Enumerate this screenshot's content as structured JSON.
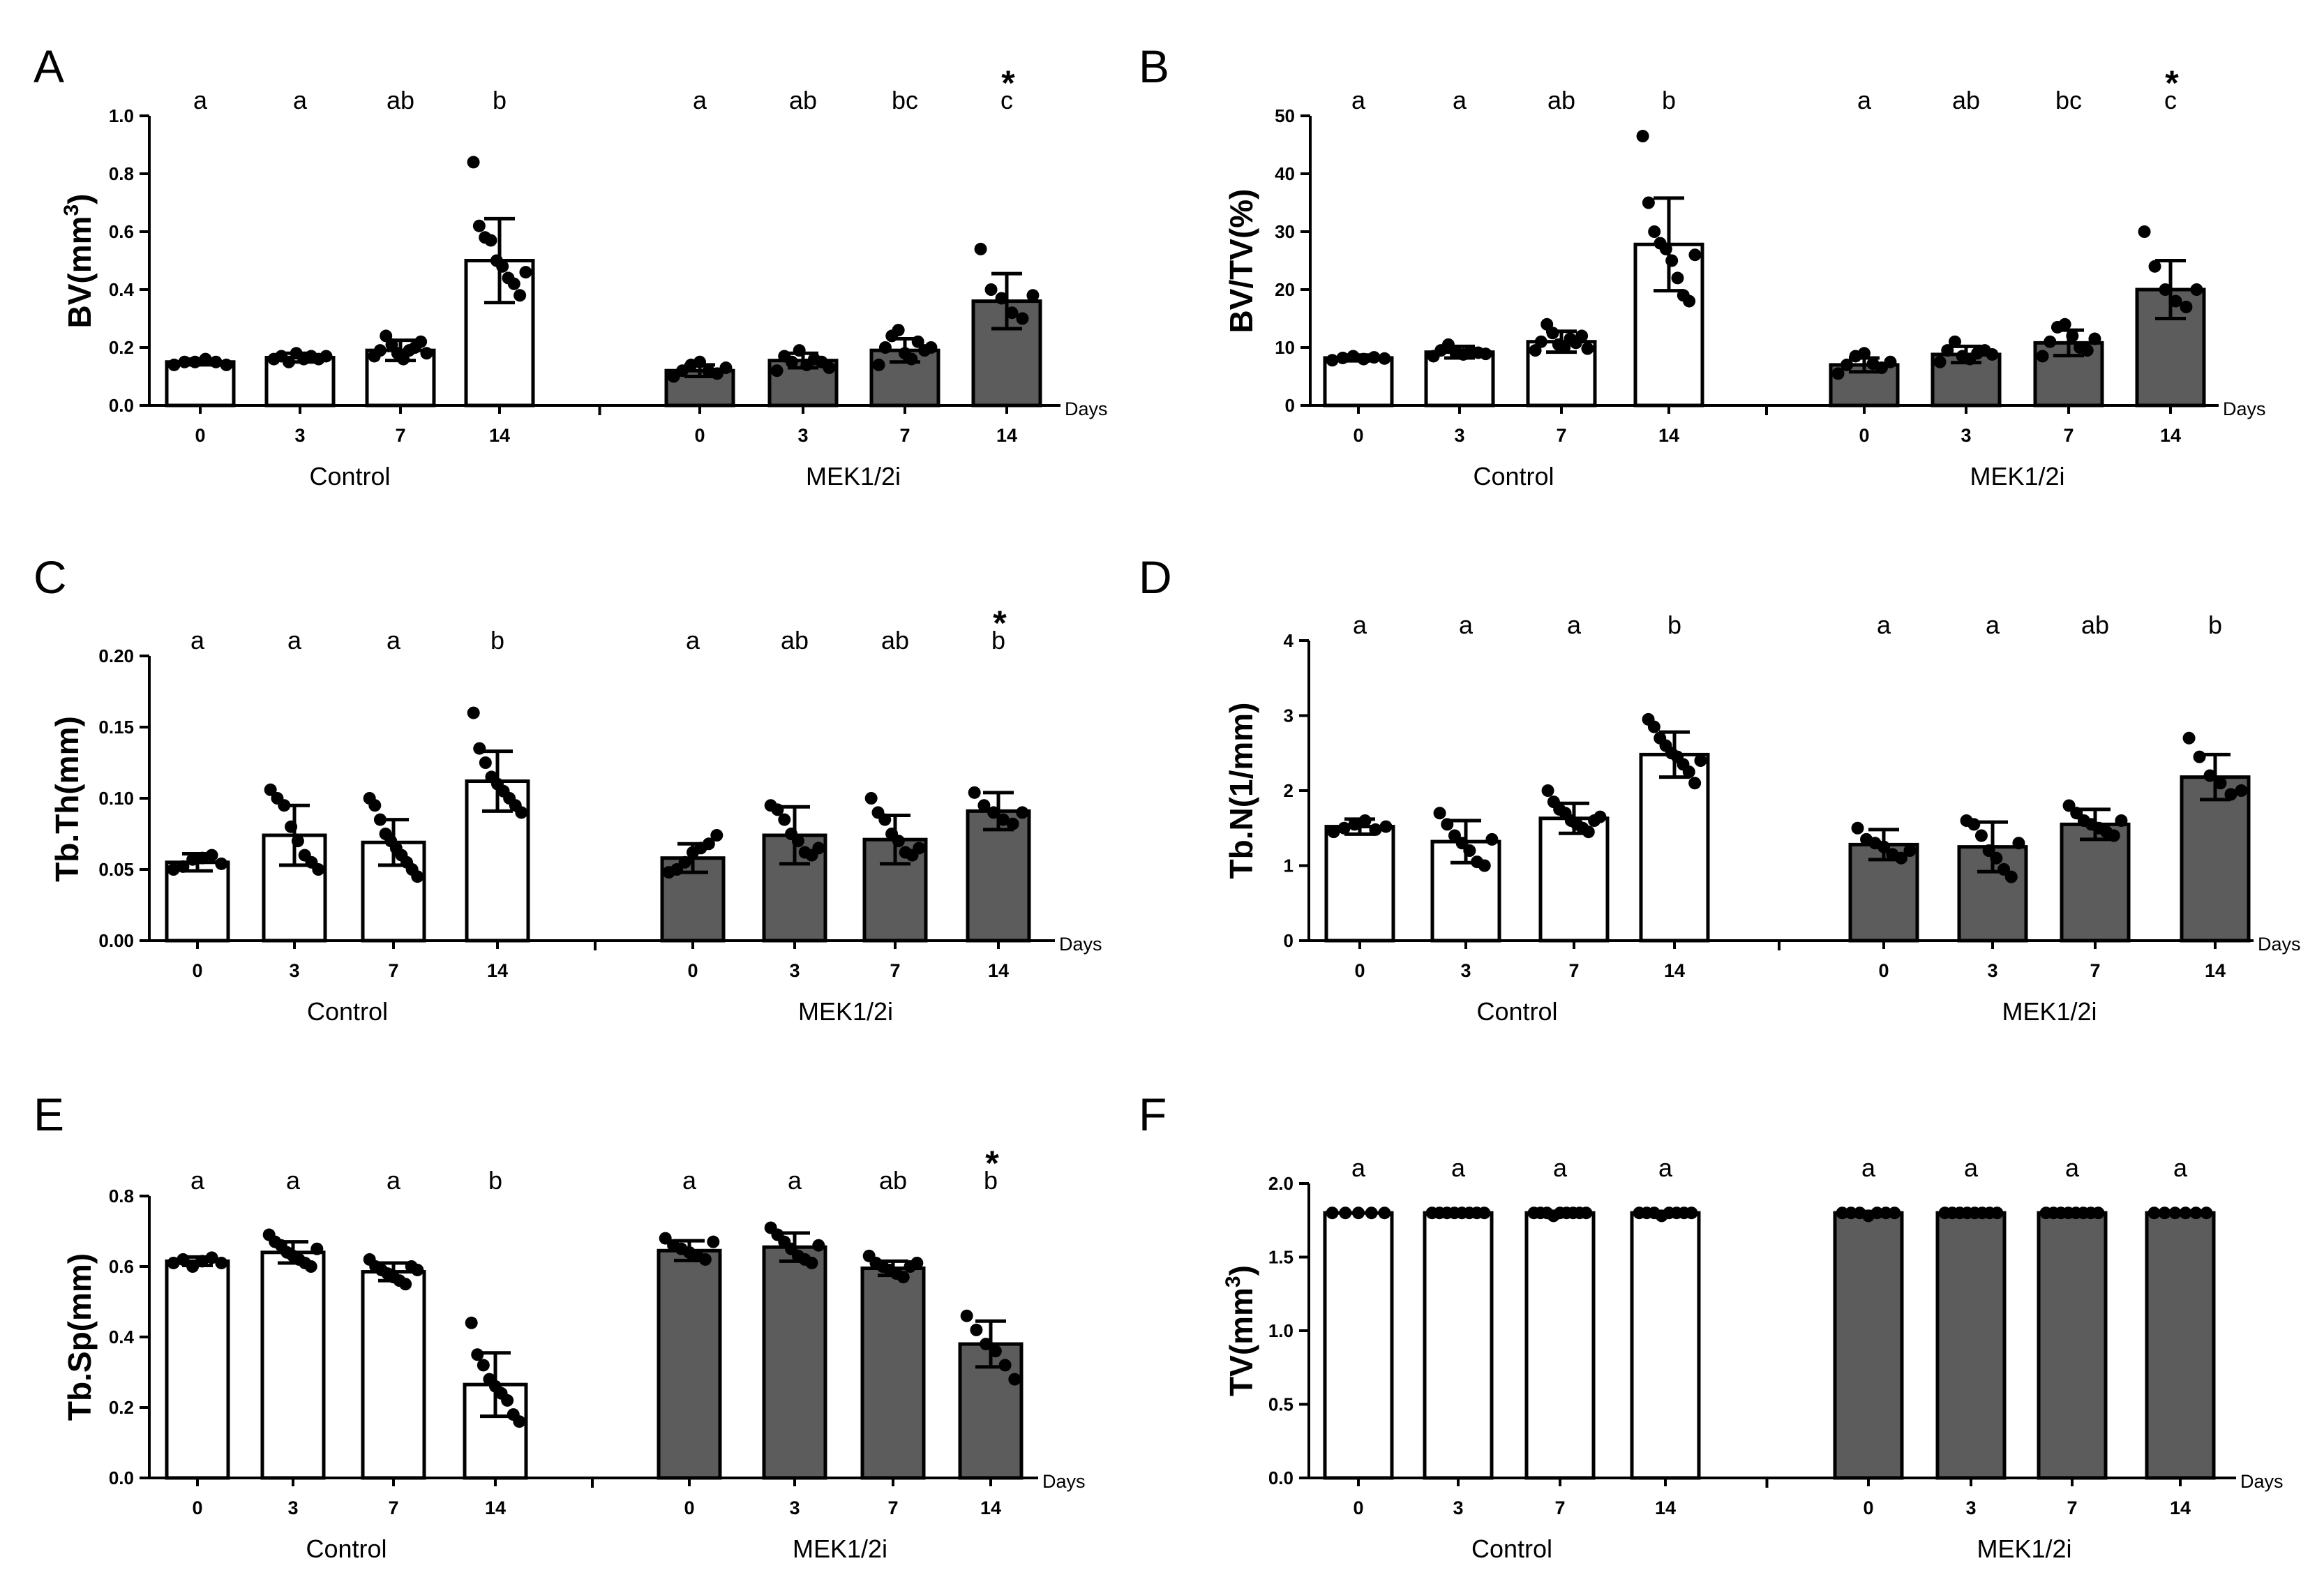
{
  "chart_data": [
    {
      "panel": "A",
      "type": "bar",
      "ylabel": "BV(mm",
      "ylabel_sup": "3",
      "ylabel_end": ")",
      "ylim": [
        0,
        1.0
      ],
      "yticks": [
        "0.0",
        "0.2",
        "0.4",
        "0.6",
        "0.8",
        "1.0"
      ],
      "xunit": "Days",
      "groups": [
        "Control",
        "MEK1/2i"
      ],
      "categories": [
        "0",
        "3",
        "7",
        "14"
      ],
      "series": [
        {
          "name": "Control",
          "fill": "#ffffff",
          "values": [
            0.15,
            0.165,
            0.19,
            0.5
          ],
          "sd": [
            0.01,
            0.015,
            0.035,
            0.145
          ],
          "points": [
            [
              0.14,
              0.15,
              0.15,
              0.16,
              0.15,
              0.14
            ],
            [
              0.16,
              0.17,
              0.15,
              0.18,
              0.16,
              0.17,
              0.16,
              0.17
            ],
            [
              0.17,
              0.19,
              0.24,
              0.21,
              0.18,
              0.16,
              0.19,
              0.2,
              0.22,
              0.18
            ],
            [
              0.84,
              0.62,
              0.58,
              0.57,
              0.5,
              0.48,
              0.44,
              0.42,
              0.38,
              0.46
            ]
          ],
          "letters": [
            "a",
            "a",
            "ab",
            "b"
          ],
          "stars": [
            "",
            "",
            "",
            ""
          ]
        },
        {
          "name": "MEK1/2i",
          "fill": "#5c5c5c",
          "values": [
            0.12,
            0.155,
            0.19,
            0.36
          ],
          "sd": [
            0.02,
            0.025,
            0.04,
            0.095
          ],
          "points": [
            [
              0.1,
              0.12,
              0.14,
              0.15,
              0.12,
              0.11,
              0.13
            ],
            [
              0.12,
              0.17,
              0.15,
              0.19,
              0.14,
              0.16,
              0.15,
              0.13
            ],
            [
              0.14,
              0.2,
              0.24,
              0.26,
              0.18,
              0.16,
              0.22,
              0.19,
              0.2
            ],
            [
              0.54,
              0.4,
              0.37,
              0.32,
              0.3,
              0.38
            ]
          ],
          "letters": [
            "a",
            "ab",
            "bc",
            "c"
          ],
          "stars": [
            "",
            "",
            "",
            "*"
          ]
        }
      ]
    },
    {
      "panel": "B",
      "type": "bar",
      "ylabel": "BV/TV(%)",
      "ylabel_sup": "",
      "ylabel_end": "",
      "ylim": [
        0,
        50
      ],
      "yticks": [
        "0",
        "10",
        "20",
        "30",
        "40",
        "50"
      ],
      "xunit": "Days",
      "groups": [
        "Control",
        "MEK1/2i"
      ],
      "categories": [
        "0",
        "3",
        "7",
        "14"
      ],
      "series": [
        {
          "name": "Control",
          "fill": "#ffffff",
          "values": [
            8.2,
            9.2,
            11,
            27.8
          ],
          "sd": [
            0.5,
            1.0,
            1.8,
            8.0
          ],
          "points": [
            [
              7.8,
              8.2,
              8.5,
              8.0,
              8.3,
              8.1
            ],
            [
              8.5,
              9.5,
              10.5,
              9.0,
              8.8,
              9.4,
              9.1,
              8.9
            ],
            [
              9.5,
              11,
              14,
              12.5,
              10.5,
              10,
              11.5,
              10.8,
              12,
              9.8
            ],
            [
              46.5,
              35,
              30,
              28,
              27,
              25,
              22,
              19,
              18,
              26
            ]
          ],
          "letters": [
            "a",
            "a",
            "ab",
            "b"
          ],
          "stars": [
            "",
            "",
            "",
            ""
          ]
        },
        {
          "name": "MEK1/2i",
          "fill": "#5c5c5c",
          "values": [
            7.0,
            8.8,
            10.8,
            20.0
          ],
          "sd": [
            1.2,
            1.4,
            2.2,
            5.0
          ],
          "points": [
            [
              5.5,
              7,
              8.5,
              9,
              7.2,
              6.5,
              7.5
            ],
            [
              7.5,
              9.5,
              11,
              8.5,
              8,
              9,
              9.5,
              8.8
            ],
            [
              8.5,
              11,
              13.5,
              14,
              12,
              10,
              9.5,
              11.5
            ],
            [
              30,
              24,
              20,
              18,
              17,
              20
            ]
          ],
          "letters": [
            "a",
            "ab",
            "bc",
            "c"
          ],
          "stars": [
            "",
            "",
            "",
            "*"
          ]
        }
      ]
    },
    {
      "panel": "C",
      "type": "bar",
      "ylabel": "Tb.Th(mm)",
      "ylabel_sup": "",
      "ylabel_end": "",
      "ylim": [
        0,
        0.2
      ],
      "yticks": [
        "0.00",
        "0.05",
        "0.10",
        "0.15",
        "0.20"
      ],
      "xunit": "Days",
      "groups": [
        "Control",
        "MEK1/2i"
      ],
      "categories": [
        "0",
        "3",
        "7",
        "14"
      ],
      "series": [
        {
          "name": "Control",
          "fill": "#ffffff",
          "values": [
            0.055,
            0.074,
            0.069,
            0.112
          ],
          "sd": [
            0.006,
            0.021,
            0.016,
            0.021
          ],
          "points": [
            [
              0.05,
              0.052,
              0.057,
              0.058,
              0.06,
              0.054
            ],
            [
              0.106,
              0.1,
              0.095,
              0.08,
              0.07,
              0.06,
              0.055,
              0.05
            ],
            [
              0.1,
              0.095,
              0.085,
              0.075,
              0.07,
              0.065,
              0.06,
              0.055,
              0.05,
              0.045
            ],
            [
              0.16,
              0.135,
              0.125,
              0.115,
              0.11,
              0.105,
              0.1,
              0.095,
              0.09
            ]
          ],
          "letters": [
            "a",
            "a",
            "a",
            "b"
          ],
          "stars": [
            "",
            "",
            "",
            ""
          ]
        },
        {
          "name": "MEK1/2i",
          "fill": "#5c5c5c",
          "values": [
            0.058,
            0.074,
            0.071,
            0.091
          ],
          "sd": [
            0.01,
            0.02,
            0.017,
            0.013
          ],
          "points": [
            [
              0.048,
              0.05,
              0.055,
              0.062,
              0.065,
              0.068,
              0.074
            ],
            [
              0.095,
              0.092,
              0.085,
              0.075,
              0.07,
              0.062,
              0.06,
              0.065
            ],
            [
              0.1,
              0.09,
              0.085,
              0.075,
              0.07,
              0.062,
              0.06,
              0.065
            ],
            [
              0.104,
              0.095,
              0.09,
              0.085,
              0.082,
              0.09
            ]
          ],
          "letters": [
            "a",
            "ab",
            "ab",
            "b"
          ],
          "stars": [
            "",
            "",
            "",
            "*"
          ]
        }
      ]
    },
    {
      "panel": "D",
      "type": "bar",
      "ylabel": "Tb.N(1/mm)",
      "ylabel_sup": "",
      "ylabel_end": "",
      "ylim": [
        0,
        4
      ],
      "yticks": [
        "0",
        "1",
        "2",
        "3",
        "4"
      ],
      "xunit": "Days",
      "groups": [
        "Control",
        "MEK1/2i"
      ],
      "categories": [
        "0",
        "3",
        "7",
        "14"
      ],
      "series": [
        {
          "name": "Control",
          "fill": "#ffffff",
          "values": [
            1.52,
            1.32,
            1.63,
            2.48
          ],
          "sd": [
            0.1,
            0.28,
            0.2,
            0.3
          ],
          "points": [
            [
              1.45,
              1.5,
              1.55,
              1.6,
              1.48,
              1.52
            ],
            [
              1.7,
              1.55,
              1.4,
              1.3,
              1.2,
              1.05,
              1.0,
              1.35
            ],
            [
              2.0,
              1.85,
              1.75,
              1.7,
              1.6,
              1.55,
              1.5,
              1.45,
              1.6,
              1.65
            ],
            [
              2.95,
              2.85,
              2.7,
              2.6,
              2.5,
              2.45,
              2.35,
              2.25,
              2.1,
              2.4
            ]
          ],
          "letters": [
            "a",
            "a",
            "a",
            "b"
          ],
          "stars": [
            "",
            "",
            "",
            ""
          ]
        },
        {
          "name": "MEK1/2i",
          "fill": "#5c5c5c",
          "values": [
            1.28,
            1.25,
            1.55,
            2.18
          ],
          "sd": [
            0.2,
            0.33,
            0.2,
            0.3
          ],
          "points": [
            [
              1.5,
              1.35,
              1.3,
              1.25,
              1.15,
              1.1,
              1.2
            ],
            [
              1.6,
              1.55,
              1.4,
              1.2,
              1.1,
              0.95,
              0.85,
              1.3
            ],
            [
              1.8,
              1.7,
              1.6,
              1.55,
              1.5,
              1.45,
              1.4,
              1.6
            ],
            [
              2.7,
              2.45,
              2.2,
              2.1,
              1.95,
              2.0
            ]
          ],
          "letters": [
            "a",
            "a",
            "ab",
            "b"
          ],
          "stars": [
            "",
            "",
            "",
            ""
          ]
        }
      ]
    },
    {
      "panel": "E",
      "type": "bar",
      "ylabel": "Tb.Sp(mm)",
      "ylabel_sup": "",
      "ylabel_end": "",
      "ylim": [
        0,
        0.8
      ],
      "yticks": [
        "0.0",
        "0.2",
        "0.4",
        "0.6",
        "0.8"
      ],
      "xunit": "Days",
      "groups": [
        "Control",
        "MEK1/2i"
      ],
      "categories": [
        "0",
        "3",
        "7",
        "14"
      ],
      "series": [
        {
          "name": "Control",
          "fill": "#ffffff",
          "values": [
            0.615,
            0.64,
            0.585,
            0.265
          ],
          "sd": [
            0.012,
            0.03,
            0.025,
            0.09
          ],
          "points": [
            [
              0.61,
              0.62,
              0.6,
              0.615,
              0.625,
              0.61
            ],
            [
              0.69,
              0.67,
              0.66,
              0.64,
              0.63,
              0.62,
              0.61,
              0.6,
              0.65
            ],
            [
              0.62,
              0.6,
              0.59,
              0.58,
              0.57,
              0.56,
              0.55,
              0.6,
              0.59
            ],
            [
              0.44,
              0.35,
              0.32,
              0.28,
              0.26,
              0.24,
              0.22,
              0.18,
              0.16
            ]
          ],
          "letters": [
            "a",
            "a",
            "a",
            "b"
          ],
          "stars": [
            "",
            "",
            "",
            ""
          ]
        },
        {
          "name": "MEK1/2i",
          "fill": "#5c5c5c",
          "values": [
            0.645,
            0.655,
            0.595,
            0.38
          ],
          "sd": [
            0.028,
            0.04,
            0.02,
            0.065
          ],
          "points": [
            [
              0.68,
              0.66,
              0.65,
              0.64,
              0.63,
              0.62,
              0.67
            ],
            [
              0.71,
              0.69,
              0.67,
              0.65,
              0.63,
              0.62,
              0.61,
              0.66
            ],
            [
              0.63,
              0.61,
              0.6,
              0.59,
              0.58,
              0.57,
              0.6,
              0.61
            ],
            [
              0.46,
              0.42,
              0.38,
              0.36,
              0.32,
              0.28
            ]
          ],
          "letters": [
            "a",
            "a",
            "ab",
            "b"
          ],
          "stars": [
            "",
            "",
            "",
            "*"
          ]
        }
      ]
    },
    {
      "panel": "F",
      "type": "bar",
      "ylabel": "TV(mm",
      "ylabel_sup": "3",
      "ylabel_end": ")",
      "ylim": [
        0,
        2.0
      ],
      "yticks": [
        "0.0",
        "0.5",
        "1.0",
        "1.5",
        "2.0"
      ],
      "xunit": "Days",
      "groups": [
        "Control",
        "MEK1/2i"
      ],
      "categories": [
        "0",
        "3",
        "7",
        "14"
      ],
      "series": [
        {
          "name": "Control",
          "fill": "#ffffff",
          "values": [
            1.8,
            1.8,
            1.8,
            1.8
          ],
          "sd": [
            0,
            0,
            0.01,
            0.01
          ],
          "points": [
            [
              1.8,
              1.8,
              1.8,
              1.8,
              1.8
            ],
            [
              1.8,
              1.8,
              1.8,
              1.8,
              1.8,
              1.8,
              1.8,
              1.8
            ],
            [
              1.8,
              1.8,
              1.8,
              1.78,
              1.8,
              1.8,
              1.8,
              1.8,
              1.8
            ],
            [
              1.8,
              1.8,
              1.8,
              1.78,
              1.8,
              1.8,
              1.8,
              1.8
            ]
          ],
          "letters": [
            "a",
            "a",
            "a",
            "a"
          ],
          "stars": [
            "",
            "",
            "",
            ""
          ]
        },
        {
          "name": "MEK1/2i",
          "fill": "#5c5c5c",
          "values": [
            1.8,
            1.8,
            1.8,
            1.8
          ],
          "sd": [
            0.01,
            0,
            0,
            0
          ],
          "points": [
            [
              1.8,
              1.8,
              1.8,
              1.78,
              1.8,
              1.8,
              1.8
            ],
            [
              1.8,
              1.8,
              1.8,
              1.8,
              1.8,
              1.8,
              1.8,
              1.8
            ],
            [
              1.8,
              1.8,
              1.8,
              1.8,
              1.8,
              1.8,
              1.8,
              1.8
            ],
            [
              1.8,
              1.8,
              1.8,
              1.8,
              1.8,
              1.8
            ]
          ],
          "letters": [
            "a",
            "a",
            "a",
            "a"
          ],
          "stars": [
            "",
            "",
            "",
            ""
          ]
        }
      ]
    }
  ]
}
